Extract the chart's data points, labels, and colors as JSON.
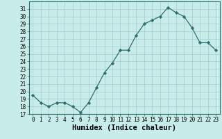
{
  "x": [
    0,
    1,
    2,
    3,
    4,
    5,
    6,
    7,
    8,
    9,
    10,
    11,
    12,
    13,
    14,
    15,
    16,
    17,
    18,
    19,
    20,
    21,
    22,
    23
  ],
  "y": [
    19.5,
    18.5,
    18.0,
    18.5,
    18.5,
    18.0,
    17.2,
    18.5,
    20.5,
    22.5,
    23.8,
    25.5,
    25.5,
    27.5,
    29.0,
    29.5,
    30.0,
    31.2,
    30.5,
    30.0,
    28.5,
    26.5,
    26.5,
    25.5
  ],
  "xlabel": "Humidex (Indice chaleur)",
  "ylim": [
    17,
    32
  ],
  "yticks": [
    17,
    18,
    19,
    20,
    21,
    22,
    23,
    24,
    25,
    26,
    27,
    28,
    29,
    30,
    31
  ],
  "xticks": [
    0,
    1,
    2,
    3,
    4,
    5,
    6,
    7,
    8,
    9,
    10,
    11,
    12,
    13,
    14,
    15,
    16,
    17,
    18,
    19,
    20,
    21,
    22,
    23
  ],
  "line_color": "#2d6e6e",
  "marker": "D",
  "bg_color": "#c8ecea",
  "grid_color": "#a0ccca",
  "tick_fontsize": 5.5,
  "xlabel_fontsize": 7.5,
  "font_family": "monospace"
}
